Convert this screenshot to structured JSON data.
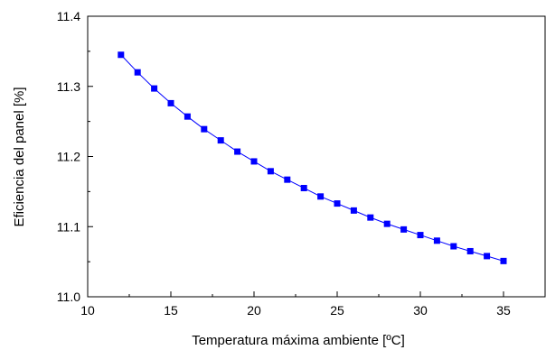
{
  "chart_data": {
    "type": "line",
    "title": "",
    "xlabel": "Temperatura máxima ambiente [ºC]",
    "ylabel": "Eficiencia del panel [%]",
    "xlim": [
      10,
      37.5
    ],
    "ylim": [
      11.0,
      11.4
    ],
    "x_ticks": [
      10,
      15,
      20,
      25,
      30,
      35
    ],
    "x_tick_labels": [
      "10",
      "15",
      "20",
      "25",
      "30",
      "35"
    ],
    "y_ticks": [
      11.0,
      11.1,
      11.2,
      11.3,
      11.4
    ],
    "y_tick_labels": [
      "11.0",
      "11.1",
      "11.2",
      "11.3",
      "11.4"
    ],
    "grid": false,
    "legend": "none",
    "marker": "square",
    "color": "#0000ff",
    "series": [
      {
        "x": [
          12,
          13,
          14,
          15,
          16,
          17,
          18,
          19,
          20,
          21,
          22,
          23,
          24,
          25,
          26,
          27,
          28,
          29,
          30,
          31,
          32,
          33,
          34,
          35
        ],
        "y": [
          11.345,
          11.32,
          11.297,
          11.276,
          11.257,
          11.239,
          11.223,
          11.207,
          11.193,
          11.179,
          11.167,
          11.155,
          11.143,
          11.133,
          11.123,
          11.113,
          11.104,
          11.096,
          11.088,
          11.08,
          11.072,
          11.065,
          11.058,
          11.051
        ]
      }
    ]
  }
}
